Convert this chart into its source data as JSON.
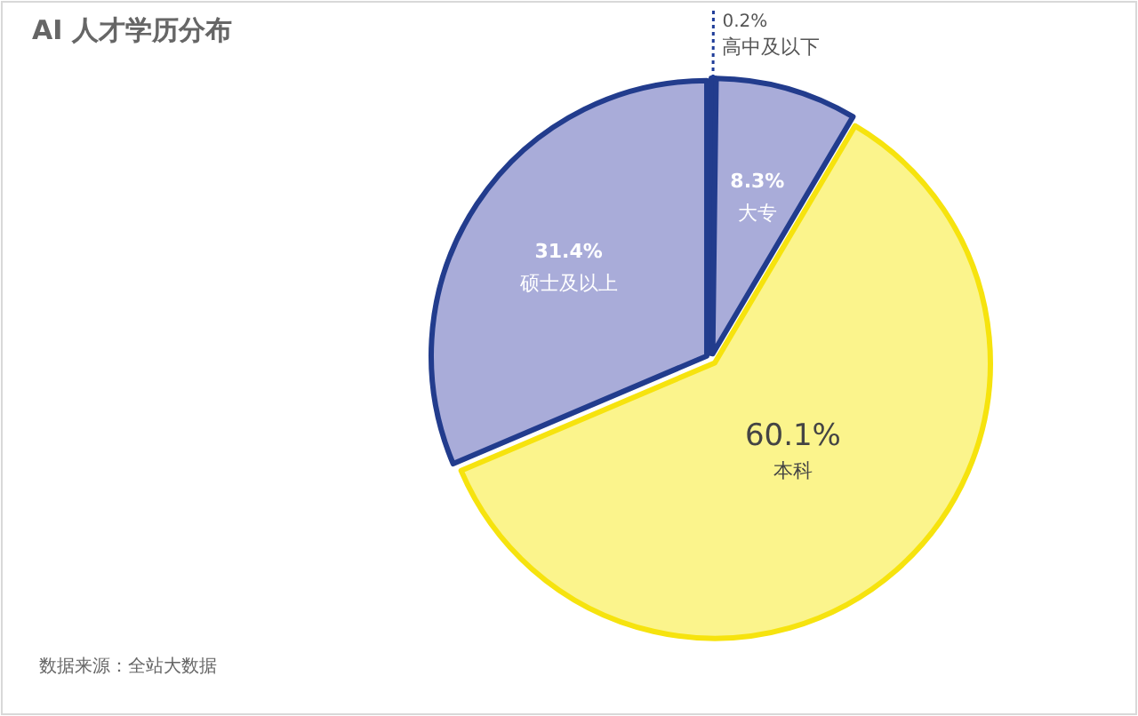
{
  "chart_data": {
    "type": "pie",
    "title": "AI 人才学历分布",
    "categories": [
      "高中及以下",
      "大专",
      "本科",
      "硕士及以上"
    ],
    "values": [
      0.2,
      8.3,
      60.1,
      31.4
    ],
    "value_labels": [
      "0.2%",
      "8.3%",
      "60.1%",
      "31.4%"
    ],
    "colors": [
      "#a9acd9",
      "#a9acd9",
      "#fbf48c",
      "#a9acd9"
    ],
    "annotations": [
      "数据来源：全站大数据"
    ]
  }
}
